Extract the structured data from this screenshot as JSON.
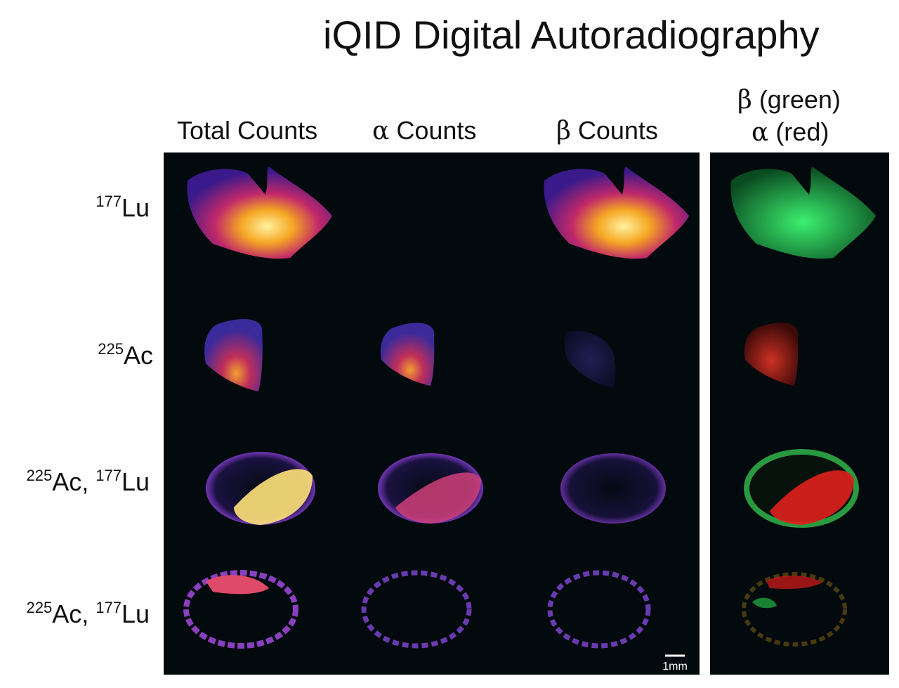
{
  "title": "iQID Digital Autoradiography",
  "columns": {
    "total": "Total Counts",
    "alpha_sym": "α",
    "alpha_rest": " Counts",
    "beta_sym": "β",
    "beta_rest": " Counts",
    "overlay_line1_sym": "β",
    "overlay_line1_rest": " (green)",
    "overlay_line2_sym": "α",
    "overlay_line2_rest": " (red)"
  },
  "rows": [
    {
      "parts": [
        {
          "mass": "177",
          "elem": "Lu"
        }
      ]
    },
    {
      "parts": [
        {
          "mass": "225",
          "elem": "Ac"
        }
      ]
    },
    {
      "parts": [
        {
          "mass": "225",
          "elem": "Ac, "
        },
        {
          "mass": "177",
          "elem": "Lu"
        }
      ]
    },
    {
      "parts": [
        {
          "mass": "225",
          "elem": "Ac, "
        },
        {
          "mass": "177",
          "elem": "Lu"
        }
      ]
    }
  ],
  "scale_bar": "1mm",
  "colors": {
    "panel_bg": "#020a0d",
    "beta_overlay": "#2fd45a",
    "alpha_overlay": "#e0201c"
  }
}
